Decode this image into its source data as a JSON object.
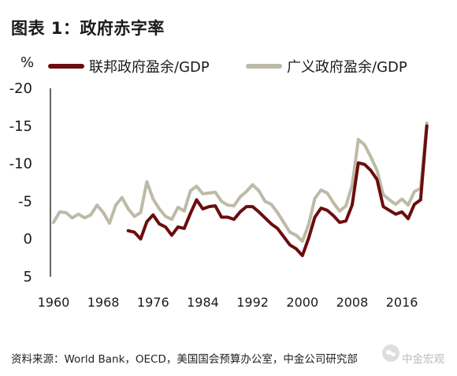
{
  "header": {
    "title": "图表 1：政府赤字率"
  },
  "footer": {
    "source": "资料来源：World Bank，OECD，美国国会预算办公室，中金公司研究部",
    "watermark_text": "中金宏观"
  },
  "colors": {
    "primary_line": "#6b0d0d",
    "secondary_line": "#bdbaa8",
    "axis": "#000000",
    "text": "#1a1a1a"
  },
  "chart_data": {
    "type": "line",
    "title": "图表 1：政府赤字率",
    "ylabel": "%",
    "xlabel": "",
    "y_inverted": true,
    "ylim": [
      5,
      -20
    ],
    "xlim": [
      1959.5,
      2020.8
    ],
    "yticks": [
      "-20",
      "-15",
      "-10",
      "-5",
      "0",
      "5"
    ],
    "xticks": [
      "1960",
      "1968",
      "1976",
      "1984",
      "1992",
      "2000",
      "2008",
      "2016"
    ],
    "grid": false,
    "legend_position": "top",
    "series": [
      {
        "name": "联邦政府盈余/GDP",
        "color": "#6b0d0d",
        "x": [
          1972,
          1973,
          1974,
          1975,
          1976,
          1977,
          1978,
          1979,
          1980,
          1981,
          1982,
          1983,
          1984,
          1985,
          1986,
          1987,
          1988,
          1989,
          1990,
          1991,
          1992,
          1993,
          1994,
          1995,
          1996,
          1997,
          1998,
          1999,
          2000,
          2001,
          2002,
          2003,
          2004,
          2005,
          2006,
          2007,
          2008,
          2009,
          2010,
          2011,
          2012,
          2013,
          2014,
          2015,
          2016,
          2017,
          2018,
          2019,
          2020
        ],
        "values": [
          -1.1,
          -0.9,
          0.0,
          -2.3,
          -3.2,
          -2.0,
          -1.6,
          -0.5,
          -1.6,
          -1.4,
          -3.4,
          -5.2,
          -4.0,
          -4.3,
          -4.4,
          -2.9,
          -2.9,
          -2.6,
          -3.6,
          -4.3,
          -4.3,
          -3.6,
          -2.8,
          -2.0,
          -1.4,
          -0.3,
          0.8,
          1.3,
          2.2,
          -0.1,
          -2.9,
          -4.1,
          -3.8,
          -3.1,
          -2.2,
          -2.4,
          -4.5,
          -10.1,
          -9.9,
          -9.1,
          -7.9,
          -4.3,
          -3.8,
          -3.3,
          -3.6,
          -2.7,
          -4.6,
          -5.2,
          -15.0
        ]
      },
      {
        "name": "广义政府盈余/GDP",
        "color": "#bdbaa8",
        "x": [
          1960,
          1961,
          1962,
          1963,
          1964,
          1965,
          1966,
          1967,
          1968,
          1969,
          1970,
          1971,
          1972,
          1973,
          1974,
          1975,
          1976,
          1977,
          1978,
          1979,
          1980,
          1981,
          1982,
          1983,
          1984,
          1985,
          1986,
          1987,
          1988,
          1989,
          1990,
          1991,
          1992,
          1993,
          1994,
          1995,
          1996,
          1997,
          1998,
          1999,
          2000,
          2001,
          2002,
          2003,
          2004,
          2005,
          2006,
          2007,
          2008,
          2009,
          2010,
          2011,
          2012,
          2013,
          2014,
          2015,
          2016,
          2017,
          2018,
          2019,
          2020
        ],
        "values": [
          -2.2,
          -3.6,
          -3.5,
          -2.8,
          -3.3,
          -2.8,
          -3.2,
          -4.5,
          -3.5,
          -2.1,
          -4.5,
          -5.5,
          -4.0,
          -3.0,
          -3.5,
          -7.6,
          -5.3,
          -4.0,
          -3.0,
          -2.6,
          -4.2,
          -3.7,
          -6.4,
          -7.0,
          -6.0,
          -6.1,
          -6.2,
          -5.0,
          -4.5,
          -4.4,
          -5.6,
          -6.3,
          -7.2,
          -6.4,
          -5.0,
          -4.6,
          -3.5,
          -2.2,
          -0.9,
          -0.5,
          0.3,
          -1.9,
          -5.4,
          -6.5,
          -6.1,
          -4.8,
          -3.7,
          -4.4,
          -7.1,
          -13.2,
          -12.5,
          -10.9,
          -9.1,
          -5.9,
          -5.2,
          -4.6,
          -5.3,
          -4.5,
          -6.3,
          -6.7,
          -15.4
        ]
      }
    ]
  }
}
